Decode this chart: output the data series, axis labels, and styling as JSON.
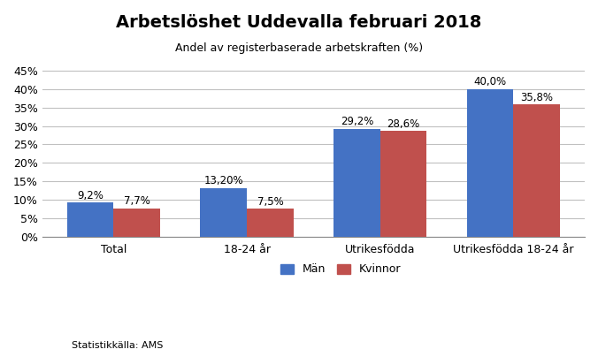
{
  "title": "Arbetslöshet Uddevalla februari 2018",
  "subtitle": "Andel av registerbaserade arbetskraften (%)",
  "categories": [
    "Total",
    "18-24 år",
    "Utrikesfödda",
    "Utrikesfödda 18-24 år"
  ],
  "man_values": [
    9.2,
    13.2,
    29.2,
    40.0
  ],
  "kvinna_values": [
    7.7,
    7.5,
    28.6,
    35.8
  ],
  "man_labels": [
    "9,2%",
    "13,20%",
    "29,2%",
    "40,0%"
  ],
  "kvinna_labels": [
    "7,7%",
    "7,5%",
    "28,6%",
    "35,8%"
  ],
  "man_color": "#4472C4",
  "kvinna_color": "#C0504D",
  "bar_width": 0.35,
  "ylim": [
    0,
    47
  ],
  "yticks": [
    0,
    5,
    10,
    15,
    20,
    25,
    30,
    35,
    40,
    45
  ],
  "ytick_labels": [
    "0%",
    "5%",
    "10%",
    "15%",
    "20%",
    "25%",
    "30%",
    "35%",
    "40%",
    "45%"
  ],
  "legend_man": "Män",
  "legend_kvinna": "Kvinnor",
  "footer": "Statistikkälla: AMS",
  "background_color": "#FFFFFF",
  "grid_color": "#C0C0C0",
  "title_fontsize": 14,
  "subtitle_fontsize": 9,
  "tick_fontsize": 9,
  "label_fontsize": 8.5,
  "footer_fontsize": 8
}
